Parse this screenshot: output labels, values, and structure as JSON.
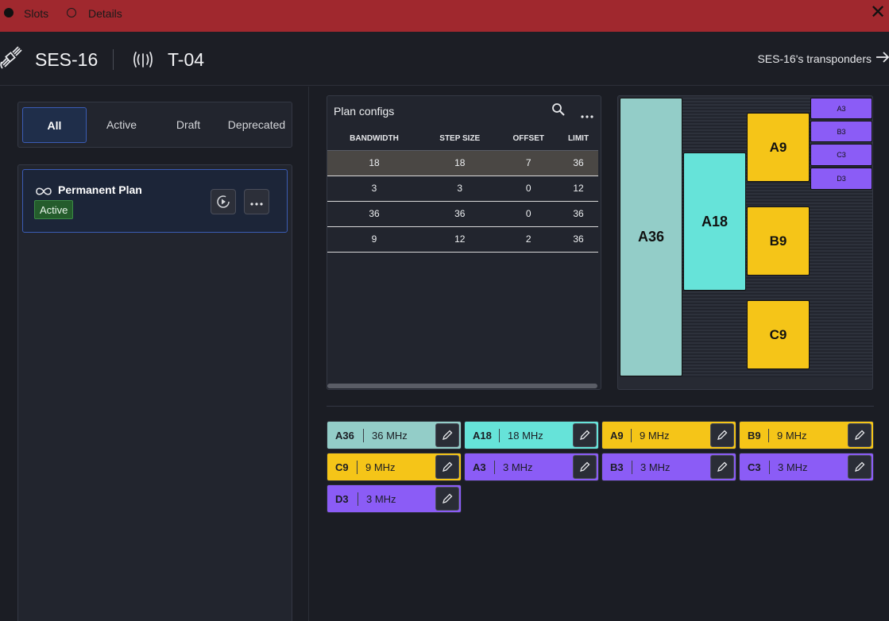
{
  "titlebar": {
    "tabs": [
      {
        "label": "Slots",
        "selected": true
      },
      {
        "label": "Details",
        "selected": false
      }
    ],
    "close_glyph": "✕"
  },
  "header": {
    "satellite_icon": "satellite-icon",
    "satellite_name": "SES-16",
    "transponder_icon": "antenna-signal-icon",
    "transponder_name": "T-04",
    "link_label": "SES-16's transponders",
    "link_icon": "arrow-right-icon"
  },
  "filters": {
    "tabs": [
      "All",
      "Active",
      "Draft",
      "Deprecated"
    ],
    "selected": "All"
  },
  "plans": [
    {
      "icon": "infinity-icon",
      "name": "Permanent Plan",
      "status": "Active",
      "status_color": "#245c2c",
      "actions": [
        "play-circle-icon",
        "more-horizontal-icon"
      ]
    }
  ],
  "plan_configs": {
    "title": "Plan configs",
    "icons": [
      "search-icon",
      "more-horizontal-icon"
    ],
    "columns": [
      "BANDWIDTH",
      "STEP SIZE",
      "OFFSET",
      "LIMIT"
    ],
    "rows": [
      [
        "18",
        "18",
        "7",
        "36"
      ],
      [
        "3",
        "3",
        "0",
        "12"
      ],
      [
        "36",
        "36",
        "0",
        "36"
      ],
      [
        "9",
        "12",
        "2",
        "36"
      ]
    ],
    "selected_row": 0
  },
  "slot_map": {
    "blocks": [
      {
        "label": "A36",
        "color": "#93cdc8"
      },
      {
        "label": "A18",
        "color": "#66e3d9"
      },
      {
        "label": "A9",
        "color": "#f5c518"
      },
      {
        "label": "B9",
        "color": "#f5c518"
      },
      {
        "label": "C9",
        "color": "#f5c518"
      },
      {
        "label": "A3",
        "color": "#8b5cf6"
      },
      {
        "label": "B3",
        "color": "#8b5cf6"
      },
      {
        "label": "C3",
        "color": "#8b5cf6"
      },
      {
        "label": "D3",
        "color": "#8b5cf6"
      }
    ]
  },
  "slot_chips": [
    {
      "name": "A36",
      "value": "36 MHz",
      "color": "#93cdc8"
    },
    {
      "name": "A18",
      "value": "18 MHz",
      "color": "#66e3d9"
    },
    {
      "name": "A9",
      "value": "9 MHz",
      "color": "#f5c518"
    },
    {
      "name": "B9",
      "value": "9 MHz",
      "color": "#f5c518"
    },
    {
      "name": "C9",
      "value": "9 MHz",
      "color": "#f5c518"
    },
    {
      "name": "A3",
      "value": "3 MHz",
      "color": "#8b5cf6"
    },
    {
      "name": "B3",
      "value": "3 MHz",
      "color": "#8b5cf6"
    },
    {
      "name": "C3",
      "value": "3 MHz",
      "color": "#8b5cf6"
    },
    {
      "name": "D3",
      "value": "3 MHz",
      "color": "#8b5cf6"
    }
  ],
  "chip_edit_icon": "pencil-icon"
}
